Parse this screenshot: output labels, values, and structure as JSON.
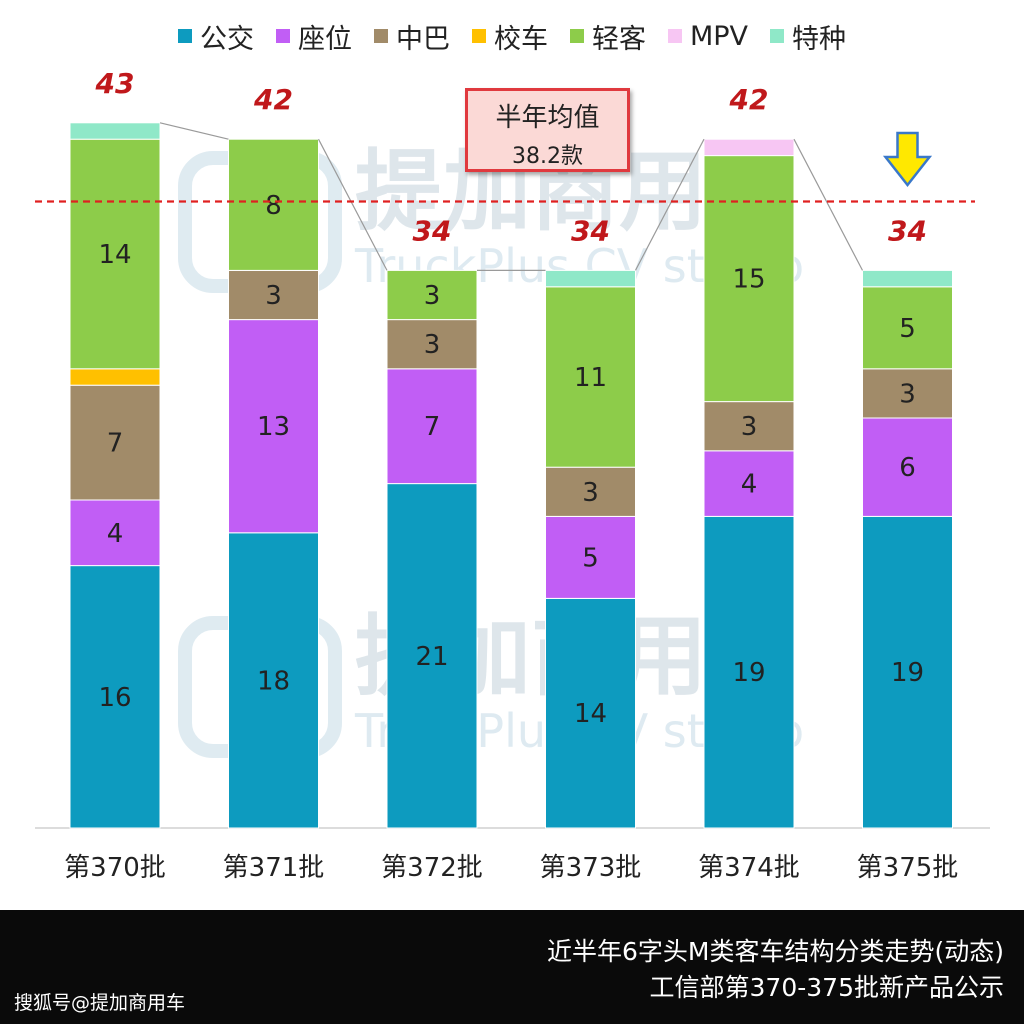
{
  "chart_data": {
    "type": "bar",
    "stacked": true,
    "categories": [
      "第370批",
      "第371批",
      "第372批",
      "第373批",
      "第374批",
      "第375批"
    ],
    "series": [
      {
        "name": "公交",
        "color": "#0d9bbf",
        "values": [
          16,
          18,
          21,
          14,
          19,
          19
        ]
      },
      {
        "name": "座位",
        "color": "#c15ef5",
        "values": [
          4,
          13,
          7,
          5,
          4,
          6
        ]
      },
      {
        "name": "中巴",
        "color": "#a18b69",
        "values": [
          7,
          3,
          3,
          3,
          3,
          3
        ]
      },
      {
        "name": "校车",
        "color": "#ffc000",
        "values": [
          1,
          0,
          0,
          0,
          0,
          0
        ]
      },
      {
        "name": "轻客",
        "color": "#8dcc4a",
        "values": [
          14,
          8,
          3,
          11,
          15,
          5
        ]
      },
      {
        "name": "MPV",
        "color": "#f7c6f3",
        "values": [
          0,
          0,
          0,
          0,
          1,
          0
        ]
      },
      {
        "name": "特种",
        "color": "#8fe8c8",
        "values": [
          1,
          0,
          0,
          1,
          0,
          1
        ]
      }
    ],
    "totals": [
      "43",
      "42",
      "34",
      "34",
      "42",
      "34"
    ],
    "average_value": 38.2,
    "average_label_line1": "半年均值",
    "average_label_line2": "38.2款",
    "ylim": [
      0,
      52
    ],
    "grid": false,
    "legend_position": "top"
  },
  "watermark": {
    "brand": "提加商用车",
    "brand_en": "TruckPlus CV studio"
  },
  "footer": {
    "line1": "近半年6字头M类客车结构分类走势(动态)",
    "line2": "工信部第370-375批新产品公示",
    "credit": "搜狐号@提加商用车"
  },
  "colors": {
    "total_label": "#c0181b",
    "average_line": "#e02020",
    "arrow_fill": "#ffe800",
    "arrow_stroke": "#3a78c9"
  },
  "icons": {
    "down_arrow": "down-arrow-icon"
  }
}
